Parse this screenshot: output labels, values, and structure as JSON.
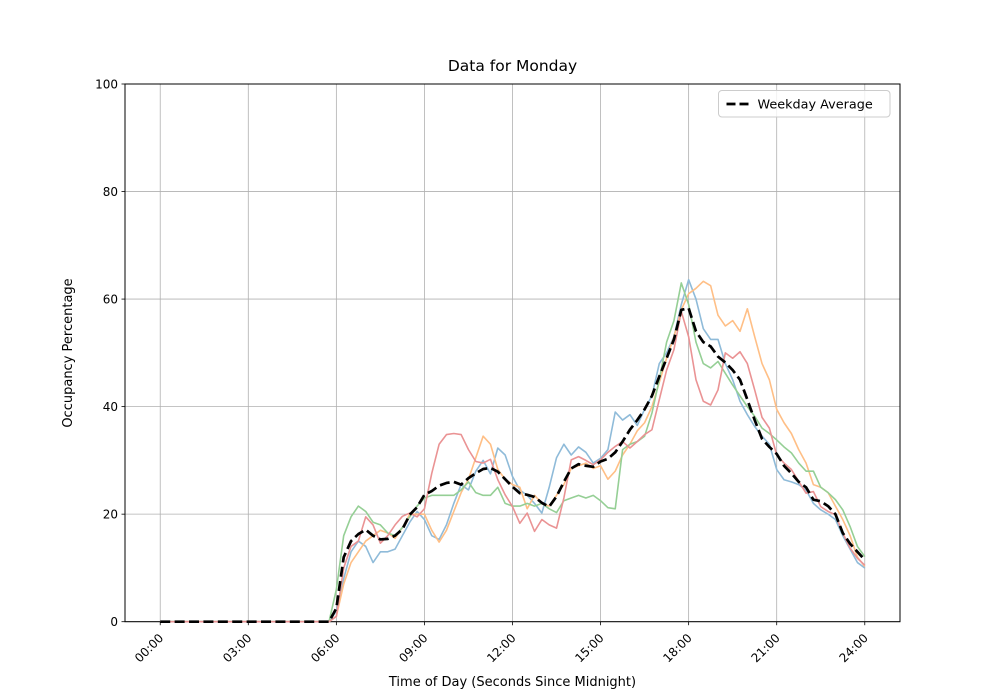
{
  "chart_data": {
    "type": "line",
    "title": "Data for Monday",
    "xlabel": "Time of Day (Seconds Since Midnight)",
    "ylabel": "Occupancy Percentage",
    "grid": true,
    "legend_position": "upper right",
    "ylim": [
      0,
      100
    ],
    "xlim_seconds": [
      -4320,
      90720
    ],
    "x_tick_hours": [
      0,
      3,
      6,
      9,
      12,
      15,
      18,
      21,
      24
    ],
    "x_tick_labels": [
      "00:00",
      "03:00",
      "06:00",
      "09:00",
      "12:00",
      "15:00",
      "18:00",
      "21:00",
      "24:00"
    ],
    "y_tick_labels": [
      "0",
      "20",
      "40",
      "60",
      "80",
      "100"
    ],
    "x_hours": [
      0,
      0.25,
      0.5,
      0.75,
      1,
      1.25,
      1.5,
      1.75,
      2,
      2.25,
      2.5,
      2.75,
      3,
      3.25,
      3.5,
      3.75,
      4,
      4.25,
      4.5,
      4.75,
      5,
      5.25,
      5.5,
      5.75,
      6,
      6.25,
      6.5,
      6.75,
      7,
      7.25,
      7.5,
      7.75,
      8,
      8.25,
      8.5,
      8.75,
      9,
      9.25,
      9.5,
      9.75,
      10,
      10.25,
      10.5,
      10.75,
      11,
      11.25,
      11.5,
      11.75,
      12,
      12.25,
      12.5,
      12.75,
      13,
      13.25,
      13.5,
      13.75,
      14,
      14.25,
      14.5,
      14.75,
      15,
      15.25,
      15.5,
      15.75,
      16,
      16.25,
      16.5,
      16.75,
      17,
      17.25,
      17.5,
      17.75,
      18,
      18.25,
      18.5,
      18.75,
      19,
      19.25,
      19.5,
      19.75,
      20,
      20.25,
      20.5,
      20.75,
      21,
      21.25,
      21.5,
      21.75,
      22,
      22.25,
      22.5,
      22.75,
      23,
      23.25,
      23.5,
      23.75,
      24
    ],
    "series": [
      {
        "name": "series-1",
        "in_legend": false,
        "color": "#8FBBD9",
        "dashed": false,
        "values": [
          0,
          0,
          0,
          0,
          0,
          0,
          0,
          0,
          0,
          0,
          0,
          0,
          0,
          0,
          0,
          0,
          0,
          0,
          0,
          0,
          0,
          0,
          0,
          0,
          2,
          8,
          13,
          15,
          14,
          11,
          13,
          13,
          13.5,
          16,
          18.5,
          20.5,
          19,
          16,
          15.3,
          18,
          22,
          25.5,
          24.5,
          28,
          30,
          27.5,
          32.3,
          31,
          27,
          24.5,
          23.5,
          22,
          20.2,
          25,
          30.5,
          33,
          31,
          32.5,
          31.5,
          29.5,
          30.4,
          32,
          39,
          37.5,
          38.5,
          36.5,
          39.5,
          42,
          48,
          50,
          53,
          59,
          63.6,
          60,
          54.5,
          52.5,
          52.5,
          48,
          45,
          41,
          38.5,
          36.3,
          34.5,
          33,
          28.3,
          26.4,
          26,
          25.5,
          24.5,
          22,
          20.8,
          20,
          19,
          16,
          13.5,
          11,
          10
        ]
      },
      {
        "name": "series-2",
        "in_legend": false,
        "color": "#FFBF86",
        "dashed": false,
        "values": [
          0,
          0,
          0,
          0,
          0,
          0,
          0,
          0,
          0,
          0,
          0,
          0,
          0,
          0,
          0,
          0,
          0,
          0,
          0,
          0,
          0,
          0,
          0,
          0,
          1,
          7,
          11,
          13,
          15,
          16,
          17,
          16.5,
          15.5,
          17.5,
          20,
          20,
          20,
          17,
          14.8,
          17,
          20.5,
          24,
          26.5,
          30.5,
          34.5,
          33,
          28.3,
          26.5,
          25.5,
          25,
          21,
          23.5,
          22,
          21.5,
          23.5,
          25.5,
          28.5,
          29,
          29.5,
          28.5,
          29,
          26.5,
          28,
          31,
          33,
          35.5,
          37,
          40,
          44.5,
          49,
          53,
          58,
          61,
          62,
          63.3,
          62.5,
          57,
          55,
          56,
          54,
          58.2,
          53,
          48,
          45,
          39.5,
          37,
          35,
          32,
          29.5,
          25.5,
          25,
          24,
          21.5,
          19,
          16,
          12,
          10.3
        ]
      },
      {
        "name": "series-3",
        "in_legend": false,
        "color": "#95CF95",
        "dashed": false,
        "values": [
          0,
          0,
          0,
          0,
          0,
          0,
          0,
          0,
          0,
          0,
          0,
          0,
          0,
          0,
          0,
          0,
          0,
          0,
          0,
          0,
          0,
          0,
          0,
          0,
          6,
          16,
          19.5,
          21.5,
          20.5,
          18.5,
          18,
          16.5,
          16,
          17.5,
          19.5,
          21.5,
          23,
          23.5,
          23.5,
          23.5,
          23.5,
          24.5,
          26,
          24,
          23.5,
          23.5,
          25,
          22,
          21.5,
          21.5,
          22,
          21.5,
          22,
          21,
          20.3,
          22.5,
          23,
          23.5,
          23,
          23.5,
          22.5,
          21.2,
          21,
          32,
          33,
          33.5,
          34.5,
          38.8,
          45,
          52,
          56,
          63,
          59,
          52,
          48,
          47.2,
          48.4,
          46.2,
          44,
          42,
          40,
          38.2,
          36,
          35,
          33.8,
          32.5,
          31.4,
          29.5,
          28,
          28,
          25,
          24,
          22.7,
          20.8,
          17.7,
          14,
          12.1
        ]
      },
      {
        "name": "series-4",
        "in_legend": false,
        "color": "#EA9394",
        "dashed": false,
        "values": [
          0,
          0,
          0,
          0,
          0,
          0,
          0,
          0,
          0,
          0,
          0,
          0,
          0,
          0,
          0,
          0,
          0,
          0,
          0,
          0,
          0,
          0,
          0,
          0,
          1,
          10,
          14,
          15,
          19.5,
          18,
          14.6,
          16,
          18,
          19.6,
          20.2,
          19.5,
          21,
          27.6,
          33,
          34.8,
          35,
          34.8,
          32,
          29.8,
          29.5,
          30.2,
          26.4,
          23.6,
          21.4,
          18.3,
          20.2,
          16.8,
          19,
          18,
          17.4,
          23,
          30.1,
          30.7,
          30,
          29.2,
          30.1,
          31.5,
          32.6,
          33.5,
          32.3,
          33.5,
          34.8,
          35.7,
          41.3,
          46.8,
          50.6,
          57.7,
          53,
          45,
          41,
          40.3,
          43.1,
          50,
          49,
          50.2,
          48,
          43.1,
          38,
          36,
          31,
          29.5,
          28.3,
          26.1,
          23.9,
          24.2,
          21.4,
          20.5,
          19.9,
          16.5,
          13.7,
          11.8,
          10.5
        ]
      },
      {
        "name": "Weekday Average",
        "in_legend": true,
        "color": "#000000",
        "dashed": true,
        "values": [
          0,
          0,
          0,
          0,
          0,
          0,
          0,
          0,
          0,
          0,
          0,
          0,
          0,
          0,
          0,
          0,
          0,
          0,
          0,
          0,
          0,
          0,
          0,
          0,
          2.5,
          12,
          15,
          16.3,
          17.1,
          16,
          15.3,
          15.4,
          16,
          17.2,
          19.9,
          21.3,
          23.6,
          24.3,
          25.3,
          25.8,
          26,
          25.5,
          26.7,
          27.6,
          28.4,
          28.6,
          27.9,
          26.5,
          25.1,
          23.9,
          23.6,
          23.2,
          22.1,
          21.4,
          23.3,
          26,
          28.5,
          29.3,
          29,
          28.8,
          29.8,
          30.3,
          31.5,
          33.5,
          35.7,
          37.5,
          39.5,
          42,
          45.6,
          49,
          52.5,
          58,
          58.3,
          54,
          52,
          51.2,
          49.3,
          48.2,
          46.8,
          45,
          41.3,
          37.5,
          34,
          32.5,
          31.2,
          29,
          27.6,
          26,
          25,
          22.7,
          22.4,
          21.5,
          20,
          16.5,
          14.5,
          13,
          11.5
        ]
      }
    ],
    "style": {
      "grid_color": "#b0b0b0",
      "spine_color": "#000000",
      "background": "#ffffff",
      "legend_border": "#cccccc",
      "avg_line_width": 2.7,
      "day_line_width": 1.6
    }
  }
}
